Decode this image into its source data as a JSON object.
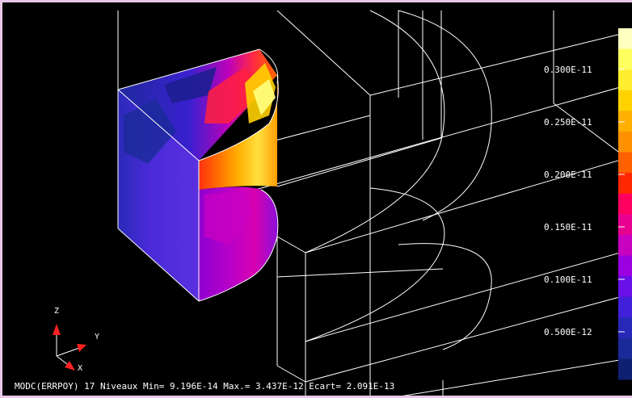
{
  "status": {
    "text": "MODC(ERRPOY)  17 Niveaux Min= 9.196E-14 Max.= 3.437E-12 Ecart= 2.091E-13"
  },
  "legend": {
    "tick_labels": [
      "0.300E-11",
      "0.250E-11",
      "0.200E-11",
      "0.150E-11",
      "0.100E-11",
      "0.500E-12"
    ],
    "colors_top_to_bottom": [
      "#ffffc0",
      "#ffff60",
      "#ffee30",
      "#ffd200",
      "#ffb000",
      "#ff9000",
      "#ff6000",
      "#ff2800",
      "#ff0060",
      "#e80090",
      "#c800c0",
      "#9a00e0",
      "#6a10e8",
      "#4020d8",
      "#2828b8",
      "#1a2a98",
      "#102070"
    ]
  },
  "triad": {
    "z_label": "Z",
    "y_label": "Y",
    "x_label": "X"
  },
  "colors": {
    "background": "#000000",
    "wire": "#ffffff",
    "arrow": "#ff2020"
  }
}
